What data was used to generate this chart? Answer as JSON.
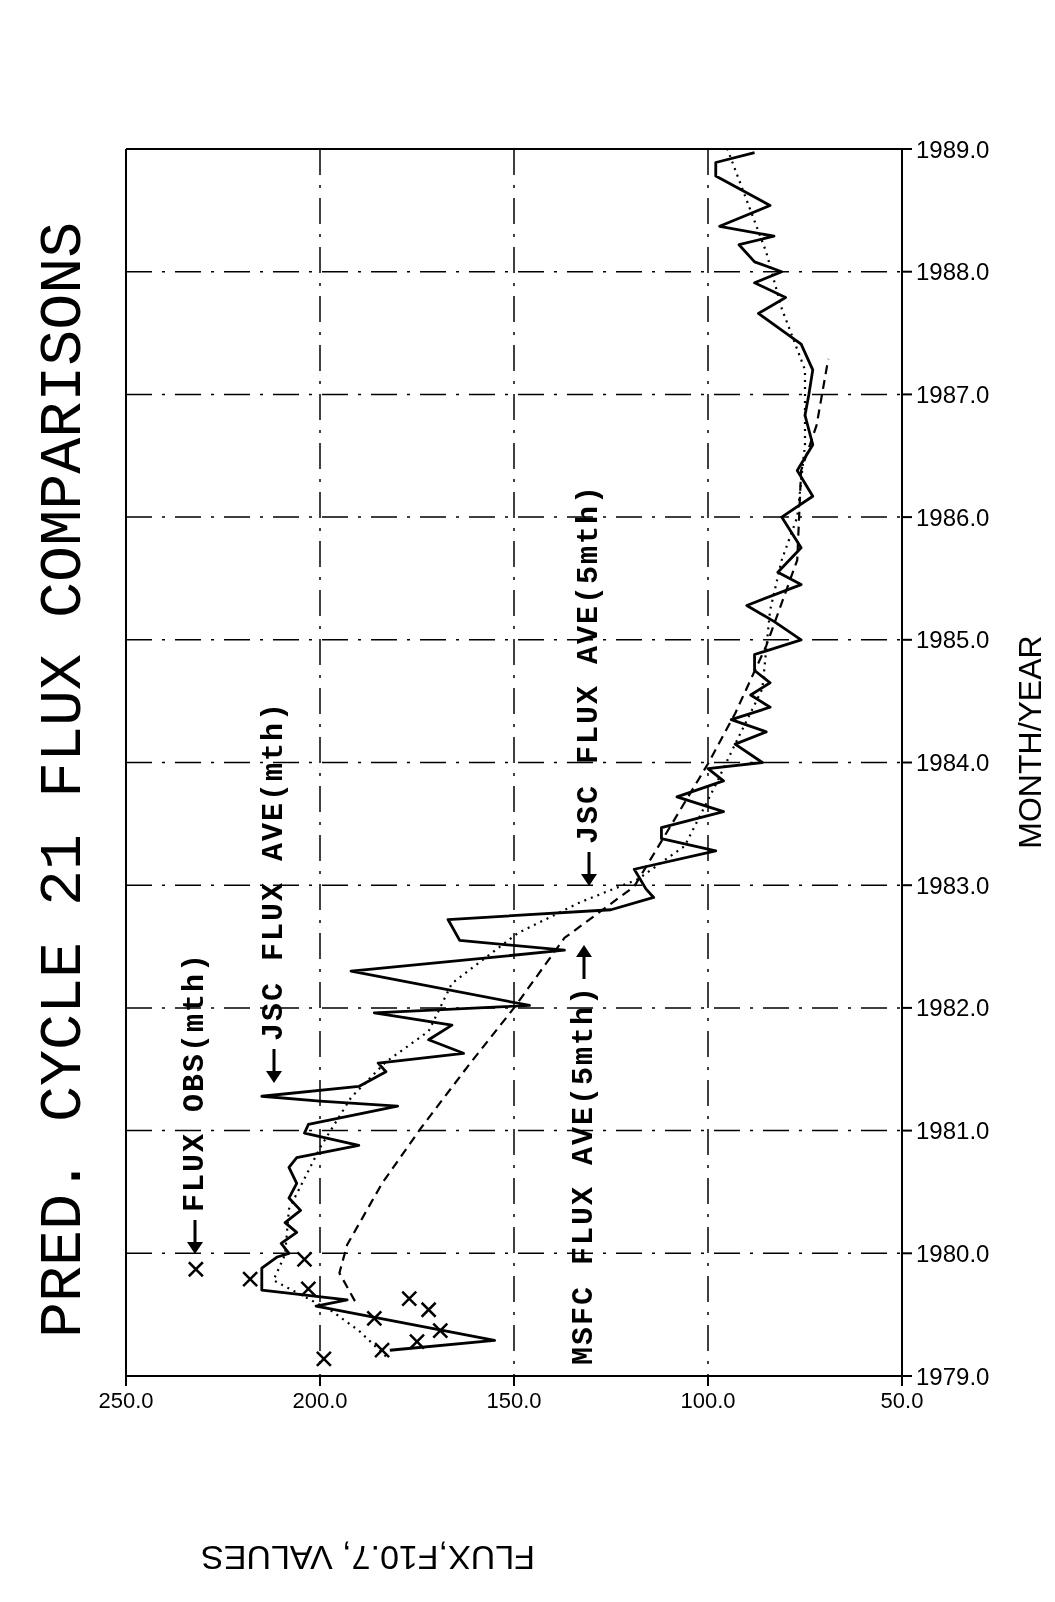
{
  "chart_data": {
    "type": "line",
    "title": "PRED. CYCLE 21 FLUX COMPARISONS",
    "xlabel": "FLUX,F10.7, VALUES",
    "ylabel": "MONTH/YEAR",
    "xlim": [
      250,
      50
    ],
    "ylim": [
      1979,
      1989
    ],
    "xticks": [
      {
        "value": 250,
        "label": "250.0"
      },
      {
        "value": 200,
        "label": "200.0"
      },
      {
        "value": 150,
        "label": "150.0"
      },
      {
        "value": 100,
        "label": "100.0"
      },
      {
        "value": 50,
        "label": "50.0"
      }
    ],
    "yticks": [
      {
        "value": 1979,
        "label": "1979.0"
      },
      {
        "value": 1980,
        "label": "1980.0"
      },
      {
        "value": 1981,
        "label": "1981.0"
      },
      {
        "value": 1982,
        "label": "1982.0"
      },
      {
        "value": 1983,
        "label": "1983.0"
      },
      {
        "value": 1984,
        "label": "1984.0"
      },
      {
        "value": 1985,
        "label": "1985.0"
      },
      {
        "value": 1986,
        "label": "1986.0"
      },
      {
        "value": 1987,
        "label": "1987.0"
      },
      {
        "value": 1988,
        "label": "1988.0"
      },
      {
        "value": 1989,
        "label": "1989.0"
      }
    ],
    "grid": true,
    "series": [
      {
        "name": "FLUX OBS(mth)",
        "type": "scatter",
        "marker": "cross",
        "color": "#000000",
        "values": [
          1979.14,
          1979.21,
          1979.28,
          1979.37,
          1979.47,
          1979.54,
          1979.63,
          1979.71,
          1979.79,
          1979.87,
          1979.95
        ],
        "x": [
          199,
          184,
          175,
          169,
          186,
          172,
          177,
          203,
          218,
          232,
          204
        ]
      },
      {
        "name": "JSC FLUX AVE(mth)",
        "type": "line",
        "line_style": "solid",
        "color": "#000000",
        "values": [
          1979.21,
          1979.29,
          1979.57,
          1979.62,
          1979.7,
          1979.88,
          1979.97,
          1980.0,
          1980.08,
          1980.17,
          1980.25,
          1980.35,
          1980.45,
          1980.57,
          1980.7,
          1980.78,
          1980.88,
          1980.98,
          1981.05,
          1981.2,
          1981.24,
          1981.28,
          1981.36,
          1981.48,
          1981.55,
          1981.63,
          1981.74,
          1981.86,
          1981.96,
          1982.02,
          1982.3,
          1982.47,
          1982.55,
          1982.72,
          1982.8,
          1982.9,
          1982.97,
          1983.13,
          1983.28,
          1983.38,
          1983.47,
          1983.6,
          1983.72,
          1983.85,
          1983.95,
          1984.0,
          1984.15,
          1984.25,
          1984.35,
          1984.45,
          1984.55,
          1984.65,
          1984.75,
          1984.88,
          1985.0,
          1985.15,
          1985.28,
          1985.45,
          1985.55,
          1985.75,
          1986.0,
          1986.17,
          1986.38,
          1986.59,
          1986.83,
          1987.0,
          1987.2,
          1987.41,
          1987.66,
          1987.79,
          1987.91,
          1988.0,
          1988.08,
          1988.22,
          1988.29,
          1988.37,
          1988.54,
          1988.78,
          1988.89,
          1988.97
        ],
        "x": [
          182,
          155,
          201,
          193,
          215,
          215,
          211,
          208,
          210,
          206,
          209,
          205,
          208,
          206,
          208,
          206,
          190,
          204,
          203,
          180,
          200,
          215,
          190,
          183,
          185,
          163,
          172,
          166,
          186,
          146,
          192,
          137,
          164,
          167,
          125,
          114,
          116,
          119,
          98,
          112,
          112,
          96,
          108,
          96,
          100,
          86,
          93,
          85,
          94,
          84,
          89,
          84,
          88,
          88,
          76,
          83,
          90,
          76,
          82,
          76,
          81,
          73,
          77,
          73,
          75,
          74,
          73,
          76,
          87,
          80,
          88,
          81,
          88,
          92,
          83,
          97,
          84,
          98,
          98,
          88
        ]
      },
      {
        "name": "JSC FLUX AVE(5mth)",
        "type": "line",
        "line_style": "dotted",
        "color": "#000000",
        "values": [
          1979.16,
          1979.37,
          1979.53,
          1979.78,
          1979.99,
          1980.36,
          1980.86,
          1981.27,
          1981.56,
          1981.81,
          1982.2,
          1982.61,
          1982.86,
          1983.05,
          1983.32,
          1983.82,
          1984.15,
          1984.6,
          1985.24,
          1985.65,
          1986.0,
          1986.59,
          1987.2,
          1987.7,
          1988.16,
          1988.58,
          1989.0
        ],
        "x": [
          183,
          190,
          197,
          212,
          209,
          208,
          200,
          192,
          183,
          172,
          166,
          149,
          133,
          118,
          106,
          98,
          93,
          86,
          84,
          81,
          77,
          75,
          75,
          81,
          85,
          90,
          95
        ]
      },
      {
        "name": "MSFC FLUX AVE(5mth)",
        "type": "line",
        "line_style": "dashed",
        "color": "#000000",
        "values": [
          1979.61,
          1979.84,
          1980.07,
          1980.57,
          1981.02,
          1981.52,
          1982.0,
          1982.57,
          1982.99,
          1983.99,
          1984.4,
          1984.95,
          1985.65,
          1986.38,
          1986.75,
          1987.29
        ],
        "x": [
          191,
          195,
          193,
          184,
          174,
          162,
          150,
          137,
          119,
          100,
          93,
          85,
          77,
          76,
          72,
          69
        ]
      }
    ]
  }
}
